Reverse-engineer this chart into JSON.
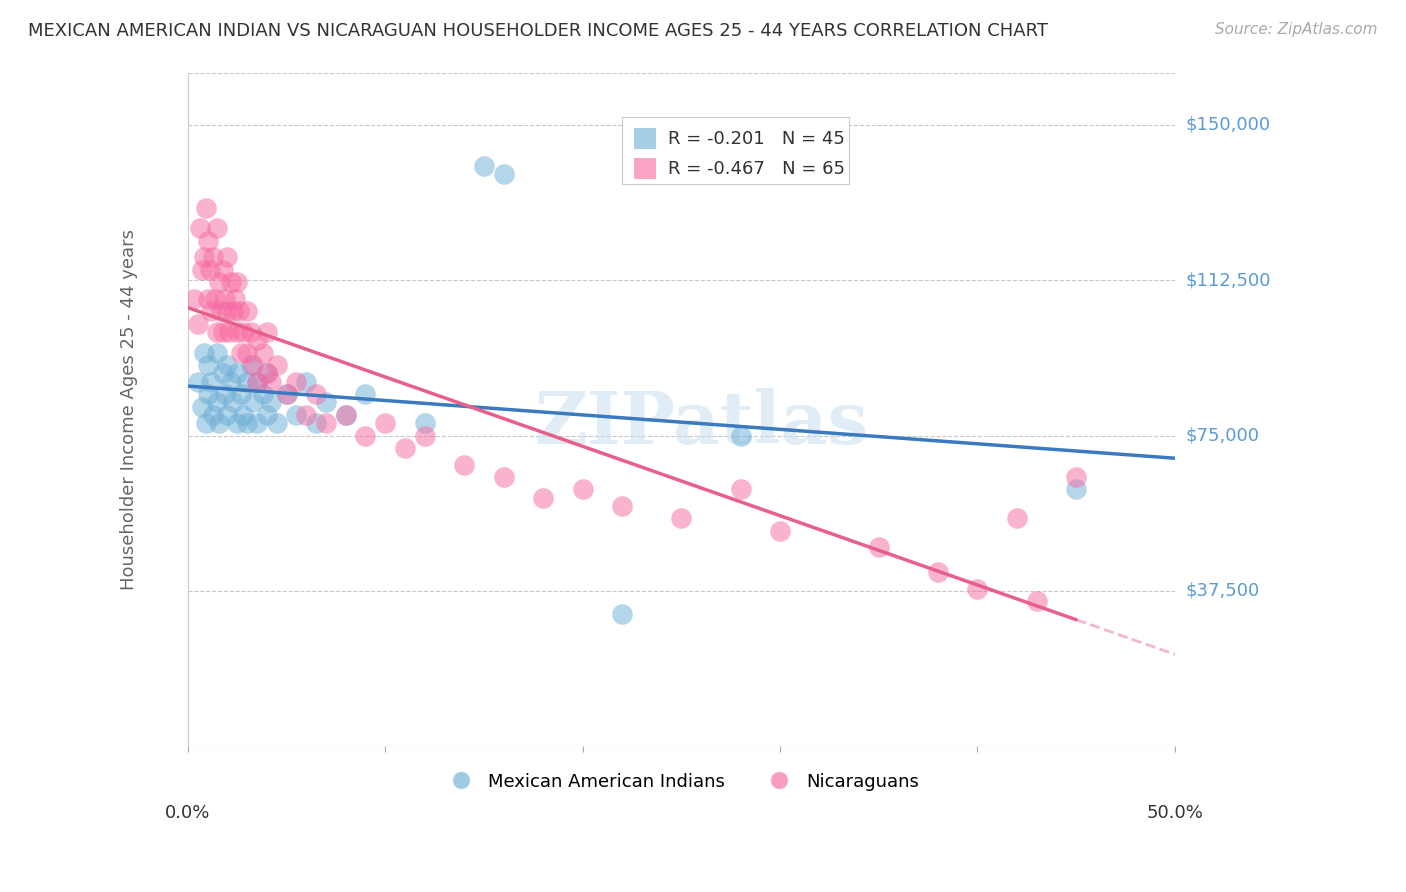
{
  "title": "MEXICAN AMERICAN INDIAN VS NICARAGUAN HOUSEHOLDER INCOME AGES 25 - 44 YEARS CORRELATION CHART",
  "source": "Source: ZipAtlas.com",
  "ylabel": "Householder Income Ages 25 - 44 years",
  "y_ticks": [
    37500,
    75000,
    112500,
    150000
  ],
  "y_tick_labels": [
    "$37,500",
    "$75,000",
    "$112,500",
    "$150,000"
  ],
  "y_min": 0,
  "y_max": 162500,
  "x_min": 0.0,
  "x_max": 0.5,
  "legend_labels": [
    "Mexican American Indians",
    "Nicaraguans"
  ],
  "blue_color": "#6baed6",
  "pink_color": "#f768a1",
  "blue_line_color": "#3a7abf",
  "pink_line_color": "#e8608a",
  "blue_R": -0.201,
  "blue_N": 45,
  "pink_R": -0.467,
  "pink_N": 65,
  "background_color": "#ffffff",
  "grid_color": "#c8c8c8",
  "title_color": "#333333",
  "source_color": "#aaaaaa",
  "axis_label_color": "#666666",
  "ytick_color": "#5b9bd5",
  "xtick_color": "#333333",
  "watermark": "ZIPatlas",
  "blue_scatter": [
    [
      0.005,
      88000
    ],
    [
      0.007,
      82000
    ],
    [
      0.008,
      95000
    ],
    [
      0.009,
      78000
    ],
    [
      0.01,
      92000
    ],
    [
      0.01,
      85000
    ],
    [
      0.012,
      88000
    ],
    [
      0.013,
      80000
    ],
    [
      0.015,
      95000
    ],
    [
      0.015,
      83000
    ],
    [
      0.016,
      78000
    ],
    [
      0.018,
      90000
    ],
    [
      0.019,
      85000
    ],
    [
      0.02,
      92000
    ],
    [
      0.02,
      80000
    ],
    [
      0.022,
      88000
    ],
    [
      0.023,
      83000
    ],
    [
      0.025,
      90000
    ],
    [
      0.025,
      78000
    ],
    [
      0.027,
      85000
    ],
    [
      0.028,
      80000
    ],
    [
      0.03,
      88000
    ],
    [
      0.03,
      78000
    ],
    [
      0.032,
      92000
    ],
    [
      0.033,
      83000
    ],
    [
      0.035,
      88000
    ],
    [
      0.035,
      78000
    ],
    [
      0.038,
      85000
    ],
    [
      0.04,
      80000
    ],
    [
      0.04,
      90000
    ],
    [
      0.042,
      83000
    ],
    [
      0.045,
      78000
    ],
    [
      0.05,
      85000
    ],
    [
      0.055,
      80000
    ],
    [
      0.06,
      88000
    ],
    [
      0.065,
      78000
    ],
    [
      0.07,
      83000
    ],
    [
      0.08,
      80000
    ],
    [
      0.09,
      85000
    ],
    [
      0.12,
      78000
    ],
    [
      0.15,
      140000
    ],
    [
      0.16,
      138000
    ],
    [
      0.28,
      75000
    ],
    [
      0.45,
      62000
    ],
    [
      0.22,
      32000
    ]
  ],
  "pink_scatter": [
    [
      0.003,
      108000
    ],
    [
      0.005,
      102000
    ],
    [
      0.006,
      125000
    ],
    [
      0.007,
      115000
    ],
    [
      0.008,
      118000
    ],
    [
      0.009,
      130000
    ],
    [
      0.01,
      108000
    ],
    [
      0.01,
      122000
    ],
    [
      0.011,
      115000
    ],
    [
      0.012,
      105000
    ],
    [
      0.013,
      118000
    ],
    [
      0.014,
      108000
    ],
    [
      0.015,
      125000
    ],
    [
      0.015,
      100000
    ],
    [
      0.016,
      112000
    ],
    [
      0.017,
      105000
    ],
    [
      0.018,
      115000
    ],
    [
      0.018,
      100000
    ],
    [
      0.019,
      108000
    ],
    [
      0.02,
      118000
    ],
    [
      0.02,
      105000
    ],
    [
      0.021,
      100000
    ],
    [
      0.022,
      112000
    ],
    [
      0.023,
      105000
    ],
    [
      0.024,
      108000
    ],
    [
      0.025,
      100000
    ],
    [
      0.025,
      112000
    ],
    [
      0.026,
      105000
    ],
    [
      0.027,
      95000
    ],
    [
      0.028,
      100000
    ],
    [
      0.03,
      105000
    ],
    [
      0.03,
      95000
    ],
    [
      0.032,
      100000
    ],
    [
      0.033,
      92000
    ],
    [
      0.035,
      98000
    ],
    [
      0.035,
      88000
    ],
    [
      0.038,
      95000
    ],
    [
      0.04,
      90000
    ],
    [
      0.04,
      100000
    ],
    [
      0.042,
      88000
    ],
    [
      0.045,
      92000
    ],
    [
      0.05,
      85000
    ],
    [
      0.055,
      88000
    ],
    [
      0.06,
      80000
    ],
    [
      0.065,
      85000
    ],
    [
      0.07,
      78000
    ],
    [
      0.08,
      80000
    ],
    [
      0.09,
      75000
    ],
    [
      0.1,
      78000
    ],
    [
      0.11,
      72000
    ],
    [
      0.12,
      75000
    ],
    [
      0.14,
      68000
    ],
    [
      0.16,
      65000
    ],
    [
      0.18,
      60000
    ],
    [
      0.2,
      62000
    ],
    [
      0.22,
      58000
    ],
    [
      0.25,
      55000
    ],
    [
      0.3,
      52000
    ],
    [
      0.35,
      48000
    ],
    [
      0.38,
      42000
    ],
    [
      0.4,
      38000
    ],
    [
      0.42,
      55000
    ],
    [
      0.43,
      35000
    ],
    [
      0.45,
      65000
    ],
    [
      0.28,
      62000
    ]
  ]
}
